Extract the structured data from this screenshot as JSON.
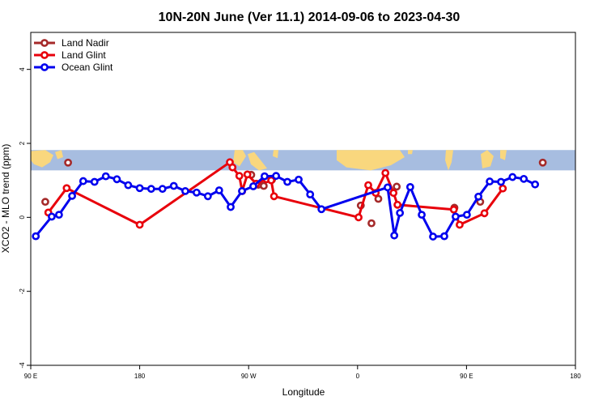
{
  "chart_data": {
    "type": "line",
    "title": "10N-20N June (Ver 11.1)   2014-09-06 to 2023-04-30",
    "xlabel": "Longitude",
    "ylabel": "XCO2 - MLO trend (ppm)",
    "xlim": [
      -90,
      180
    ],
    "ylim": [
      -4,
      5
    ],
    "x_ticks": [
      {
        "value": -90,
        "label": "90 E"
      },
      {
        "value": -36,
        "label": "180"
      },
      {
        "value": 18,
        "label": "90 W"
      },
      {
        "value": 72,
        "label": "0"
      },
      {
        "value": 126,
        "label": "90 E"
      },
      {
        "value": 180,
        "label": "180"
      }
    ],
    "y_ticks": [
      {
        "value": -4,
        "label": "-4"
      },
      {
        "value": -2,
        "label": "-2"
      },
      {
        "value": 0,
        "label": "0"
      },
      {
        "value": 2,
        "label": "2"
      },
      {
        "value": 4,
        "label": "4"
      }
    ],
    "map_band": {
      "ymin": 1.27,
      "ymax": 1.82,
      "ocean_color": "#a7bde0",
      "land_color": "#f9d77e"
    },
    "legend": {
      "position": "top-left"
    },
    "series": [
      {
        "name": "Land Nadir",
        "color": "#a52a2a",
        "line": false,
        "points": [
          [
            -82.8,
            0.42
          ],
          [
            -71.5,
            1.48
          ],
          [
            19.3,
            1.15
          ],
          [
            22.8,
            0.88
          ],
          [
            25.5,
            0.85
          ],
          [
            29.6,
            1.02
          ],
          [
            73.6,
            0.32
          ],
          [
            78.9,
            -0.16
          ],
          [
            82.3,
            0.5
          ],
          [
            91.4,
            0.83
          ],
          [
            120.0,
            0.26
          ],
          [
            132.8,
            0.42
          ],
          [
            163.8,
            1.48
          ]
        ]
      },
      {
        "name": "Land Glint",
        "color": "#e8000b",
        "line": true,
        "points": [
          [
            -81.3,
            0.13
          ],
          [
            -72.2,
            0.79
          ],
          [
            -36.0,
            -0.2
          ],
          [
            8.7,
            1.49
          ],
          [
            10.0,
            1.35
          ],
          [
            13.4,
            1.12
          ],
          [
            14.8,
            0.71
          ],
          [
            17.4,
            1.16
          ],
          [
            21.8,
            0.91
          ],
          [
            26.8,
            1.03
          ],
          [
            29.2,
            1.0
          ],
          [
            30.6,
            0.57
          ],
          [
            72.5,
            0.0
          ],
          [
            77.3,
            0.87
          ],
          [
            81.0,
            0.66
          ],
          [
            85.8,
            1.2
          ],
          [
            89.8,
            0.66
          ],
          [
            91.8,
            0.34
          ],
          [
            119.7,
            0.21
          ],
          [
            122.6,
            -0.2
          ],
          [
            134.9,
            0.11
          ],
          [
            144.0,
            0.78
          ]
        ]
      },
      {
        "name": "Ocean Glint",
        "color": "#0000ee",
        "line": true,
        "points": [
          [
            -87.5,
            -0.51
          ],
          [
            -79.6,
            0.02
          ],
          [
            -76.0,
            0.07
          ],
          [
            -69.5,
            0.58
          ],
          [
            -64.0,
            0.98
          ],
          [
            -58.4,
            0.96
          ],
          [
            -52.8,
            1.11
          ],
          [
            -47.3,
            1.03
          ],
          [
            -41.7,
            0.87
          ],
          [
            -36.0,
            0.79
          ],
          [
            -30.3,
            0.77
          ],
          [
            -24.7,
            0.77
          ],
          [
            -19.1,
            0.85
          ],
          [
            -13.4,
            0.71
          ],
          [
            -7.8,
            0.67
          ],
          [
            -2.2,
            0.57
          ],
          [
            3.4,
            0.73
          ],
          [
            9.1,
            0.28
          ],
          [
            14.7,
            0.71
          ],
          [
            20.3,
            0.84
          ],
          [
            25.9,
            1.11
          ],
          [
            31.6,
            1.12
          ],
          [
            37.2,
            0.96
          ],
          [
            42.8,
            1.02
          ],
          [
            48.5,
            0.62
          ],
          [
            54.1,
            0.22
          ],
          [
            86.9,
            0.81
          ],
          [
            90.2,
            -0.49
          ],
          [
            93.0,
            0.12
          ],
          [
            98.1,
            0.82
          ],
          [
            103.8,
            0.07
          ],
          [
            109.4,
            -0.52
          ],
          [
            115.0,
            -0.51
          ],
          [
            120.6,
            0.02
          ],
          [
            126.2,
            0.07
          ],
          [
            131.9,
            0.56
          ],
          [
            137.5,
            0.97
          ],
          [
            143.1,
            0.96
          ],
          [
            148.8,
            1.09
          ],
          [
            154.4,
            1.04
          ],
          [
            160.0,
            0.89
          ]
        ]
      }
    ]
  }
}
